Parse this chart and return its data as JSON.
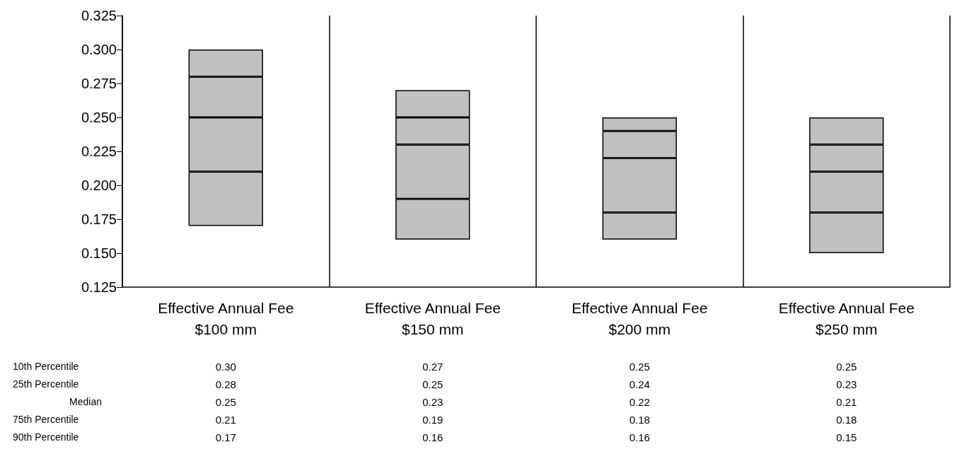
{
  "chart_data": {
    "type": "bar",
    "categories": [
      "Effective Annual Fee\n$100 mm",
      "Effective Annual Fee\n$150 mm",
      "Effective Annual Fee\n$200 mm",
      "Effective Annual Fee\n$250 mm"
    ],
    "series": [
      {
        "color": "#c0c0c0",
        "base": [
          0.17,
          0.16,
          0.16,
          0.15
        ],
        "values": [
          0.04,
          0.03,
          0.02,
          0.03
        ]
      },
      {
        "color": "#c0c0c0",
        "base": [
          0.21,
          0.19,
          0.18,
          0.18
        ],
        "values": [
          0.04,
          0.04,
          0.04,
          0.03
        ]
      },
      {
        "color": "#c0c0c0",
        "base": [
          0.25,
          0.23,
          0.22,
          0.21
        ],
        "values": [
          0.03,
          0.02,
          0.02,
          0.02
        ]
      },
      {
        "color": "#c0c0c0",
        "base": [
          0.28,
          0.25,
          0.24,
          0.23
        ],
        "values": [
          0.02,
          0.02,
          0.01,
          0.02
        ]
      }
    ],
    "ylim": [
      0.125,
      0.325
    ],
    "yticks": [
      0.125,
      {
        "value": 0.15,
        "label": "0.150"
      },
      0.175,
      {
        "value": 0.2,
        "label": "0.200"
      },
      0.225,
      {
        "value": 0.25,
        "label": "0.250"
      },
      0.275,
      {
        "value": 0.3,
        "label": "0.300"
      },
      0.325
    ],
    "grid": "x",
    "annotations": [
      "10th Percentile",
      "0.30",
      "0.27",
      "0.25",
      "0.25",
      "25th Percentile",
      "0.28",
      "0.25",
      "0.24",
      "0.23",
      "Median",
      "0.25",
      "0.23",
      "0.22",
      "0.21",
      "75th Percentile",
      "0.21",
      "0.19",
      "0.18",
      "0.18",
      "90th Percentile",
      "0.17",
      "0.16",
      "0.16",
      "0.15"
    ]
  }
}
